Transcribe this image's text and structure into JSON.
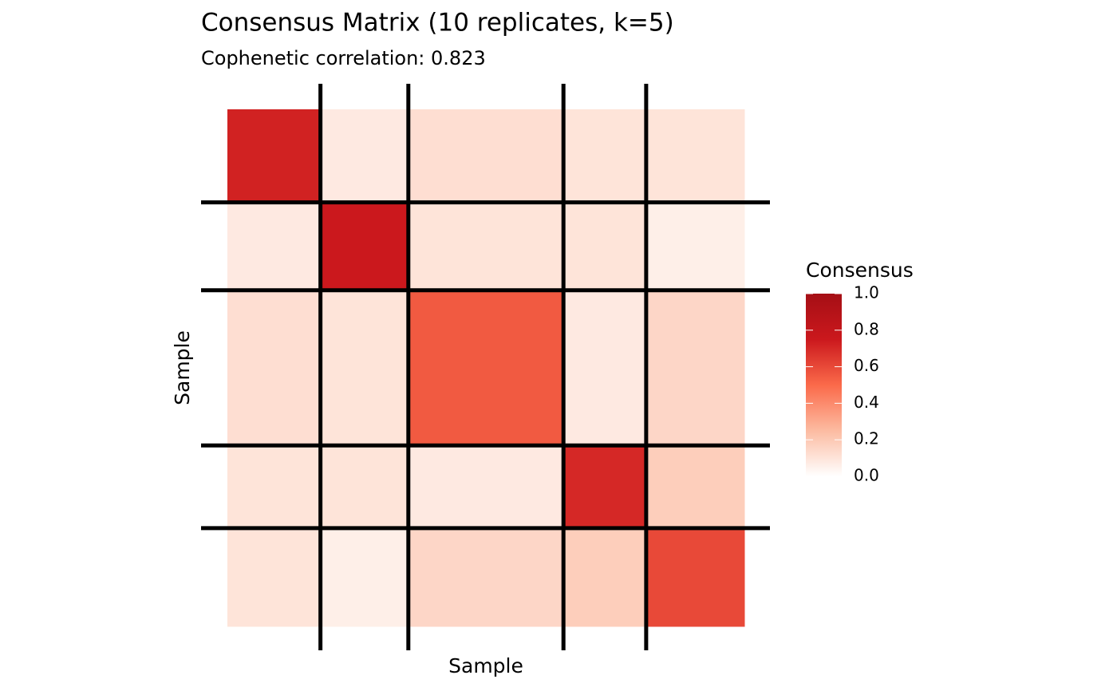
{
  "chart_data": {
    "type": "heatmap",
    "title": "Consensus Matrix (10 replicates, k=5)",
    "subtitle": "Cophenetic correlation: 0.823",
    "xlabel": "Sample",
    "ylabel": "Sample",
    "legend_title": "Consensus",
    "cluster_sizes": [
      18,
      17,
      30,
      16,
      19
    ],
    "values": [
      [
        0.72,
        0.08,
        0.12,
        0.1,
        0.1
      ],
      [
        0.08,
        0.75,
        0.1,
        0.1,
        0.06
      ],
      [
        0.12,
        0.1,
        0.55,
        0.08,
        0.15
      ],
      [
        0.1,
        0.1,
        0.08,
        0.7,
        0.18
      ],
      [
        0.1,
        0.06,
        0.15,
        0.18,
        0.6
      ]
    ],
    "colors": [
      "#ffffff",
      "#fcbba1",
      "#fb6a4a",
      "#cb181d",
      "#a50f15"
    ],
    "clim": [
      0,
      1
    ],
    "cticks": [
      {
        "value": 0,
        "label": "0.0"
      },
      0.2,
      0.4,
      0.6,
      0.8,
      {
        "value": 1,
        "label": "1.0"
      }
    ]
  }
}
